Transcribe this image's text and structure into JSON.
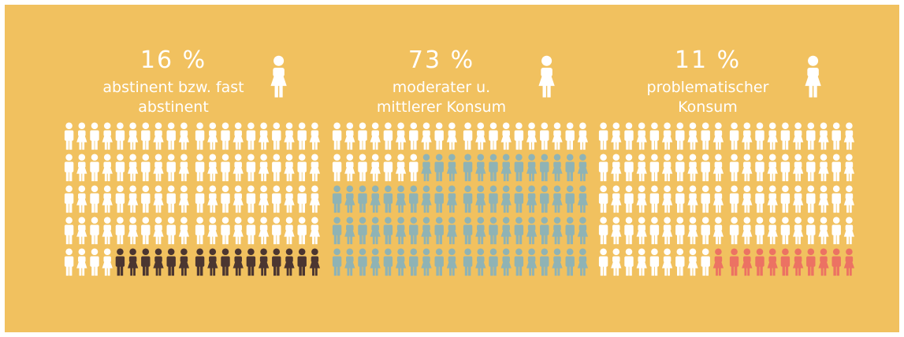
{
  "panels": [
    {
      "percent": {
        "value": 16,
        "label": "16 %"
      },
      "label_lines": [
        "abstinent bzw. fast",
        "abstinent"
      ],
      "color": "#4b3631"
    },
    {
      "percent": {
        "value": 73,
        "label": "73 %"
      },
      "label_lines": [
        "moderater u.",
        "mittlerer Konsum"
      ],
      "color": "#8fb3b5"
    },
    {
      "percent": {
        "value": 11,
        "label": "11 %"
      },
      "label_lines": [
        "problematischer",
        "Konsum"
      ],
      "color": "#ec7263"
    }
  ],
  "background": "#f1c15f",
  "base_color": "#ffffff"
}
